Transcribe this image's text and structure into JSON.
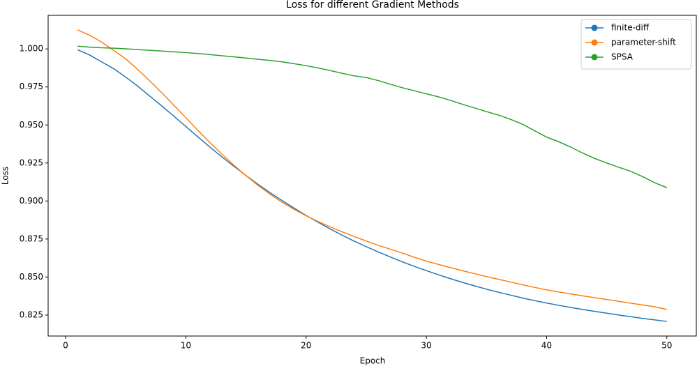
{
  "chart_data": {
    "type": "line",
    "title": "Loss for different Gradient Methods",
    "xlabel": "Epoch",
    "ylabel": "Loss",
    "x": [
      1,
      2,
      3,
      4,
      5,
      6,
      7,
      8,
      9,
      10,
      11,
      12,
      13,
      14,
      15,
      16,
      17,
      18,
      19,
      20,
      21,
      22,
      23,
      24,
      25,
      26,
      27,
      28,
      29,
      30,
      31,
      32,
      33,
      34,
      35,
      36,
      37,
      38,
      39,
      40,
      41,
      42,
      43,
      44,
      45,
      46,
      47,
      48,
      49,
      50
    ],
    "series": [
      {
        "name": "finite-diff",
        "color": "#1f77b4",
        "values": [
          0.9995,
          0.996,
          0.9915,
          0.987,
          0.9815,
          0.9755,
          0.969,
          0.9625,
          0.9558,
          0.949,
          0.9422,
          0.9355,
          0.929,
          0.9228,
          0.9168,
          0.911,
          0.9055,
          0.9003,
          0.8953,
          0.8905,
          0.886,
          0.8816,
          0.8775,
          0.8736,
          0.87,
          0.8665,
          0.8632,
          0.86,
          0.857,
          0.8542,
          0.8515,
          0.8489,
          0.8465,
          0.8442,
          0.842,
          0.84,
          0.8381,
          0.8362,
          0.8345,
          0.8329,
          0.8314,
          0.83,
          0.8287,
          0.8274,
          0.8262,
          0.825,
          0.8239,
          0.8228,
          0.8218,
          0.8208
        ]
      },
      {
        "name": "parameter-shift",
        "color": "#ff7f0e",
        "values": [
          1.0125,
          1.009,
          1.0045,
          0.999,
          0.9935,
          0.9865,
          0.979,
          0.9712,
          0.963,
          0.9548,
          0.9465,
          0.9385,
          0.9308,
          0.9235,
          0.9167,
          0.9103,
          0.9045,
          0.8992,
          0.8945,
          0.8903,
          0.8865,
          0.883,
          0.8797,
          0.8766,
          0.8737,
          0.8709,
          0.8683,
          0.8658,
          0.863,
          0.8605,
          0.8583,
          0.8562,
          0.8542,
          0.8522,
          0.8503,
          0.8485,
          0.8467,
          0.8449,
          0.8432,
          0.8415,
          0.8402,
          0.8389,
          0.8376,
          0.8364,
          0.8352,
          0.834,
          0.8328,
          0.8316,
          0.8304,
          0.8287
        ]
      },
      {
        "name": "SPSA",
        "color": "#2ca02c",
        "values": [
          1.0018,
          1.0012,
          1.0008,
          1.0005,
          1.0001,
          0.9996,
          0.9991,
          0.9986,
          0.9981,
          0.9976,
          0.997,
          0.9963,
          0.9955,
          0.9948,
          0.994,
          0.9932,
          0.9924,
          0.9915,
          0.9903,
          0.989,
          0.9875,
          0.9858,
          0.984,
          0.9823,
          0.9812,
          0.9792,
          0.9768,
          0.9745,
          0.9725,
          0.9705,
          0.9685,
          0.9662,
          0.9636,
          0.9612,
          0.9588,
          0.9565,
          0.9537,
          0.9505,
          0.9462,
          0.942,
          0.939,
          0.9355,
          0.9315,
          0.928,
          0.925,
          0.9222,
          0.9195,
          0.916,
          0.912,
          0.9088
        ]
      }
    ],
    "xlim": [
      -1.45,
      52.45
    ],
    "xticks": [
      0,
      10,
      20,
      30,
      40,
      50
    ],
    "ylim": [
      0.8112,
      1.0221
    ],
    "yticks": [
      0.825,
      {
        "value": 0.85,
        "label": "0.850"
      },
      0.875,
      {
        "value": 0.9,
        "label": "0.900"
      },
      0.925,
      {
        "value": 0.95,
        "label": "0.950"
      },
      0.975,
      {
        "value": 1,
        "label": "1.000"
      }
    ],
    "grid": false,
    "legend": "upper right"
  }
}
